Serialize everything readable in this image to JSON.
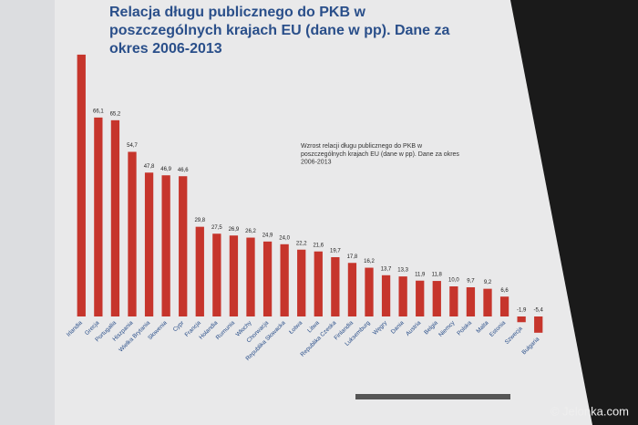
{
  "chart_data": {
    "type": "bar",
    "title": "Relacja długu publicznego do PKB w poszczególnych krajach EU (dane w pp). Dane za okres 2006-2013",
    "subtitle": "Wzrost relacji długu publicznego do PKB w poszczególnych krajach EU (dane w pp). Dane za okres 2006-2013",
    "categories": [
      "Irlandia",
      "Grecja",
      "Portugalia",
      "Hiszpania",
      "Wielka Brytania",
      "Słowenia",
      "Cypr",
      "Francja",
      "Holandia",
      "Rumunia",
      "Włochy",
      "Chorwacja",
      "Republika Słowacka",
      "Łotwa",
      "Litwa",
      "Republika Czeska",
      "Finlandia",
      "Luksemburg",
      "Węgry",
      "Dania",
      "Austria",
      "Belgia",
      "Niemcy",
      "Polska",
      "Malta",
      "Estonia",
      "Szwecja",
      "Bułgaria"
    ],
    "values": [
      87,
      66.1,
      65.2,
      54.7,
      47.8,
      46.9,
      46.6,
      29.8,
      27.5,
      26.9,
      26.2,
      24.9,
      24.0,
      22.2,
      21.6,
      19.7,
      17.8,
      16.2,
      13.7,
      13.3,
      11.9,
      11.8,
      10.0,
      9.7,
      9.2,
      6.6,
      -1.9,
      -5.4
    ],
    "value_labels": [
      null,
      "66,1",
      "65,2",
      "54,7",
      "47,8",
      "46,9",
      "46,6",
      "29,8",
      "27,5",
      "26,9",
      "26,2",
      "24,9",
      "24,0",
      "22,2",
      "21,6",
      "19,7",
      "17,8",
      "16,2",
      "13,7",
      "13,3",
      "11,9",
      "11,8",
      "10,0",
      "9,7",
      "9,2",
      "6,6",
      "-1,9",
      "-5,4"
    ],
    "color": "#c6352c",
    "ylim": [
      -10,
      90
    ]
  },
  "watermark": "© Jelonka.com"
}
